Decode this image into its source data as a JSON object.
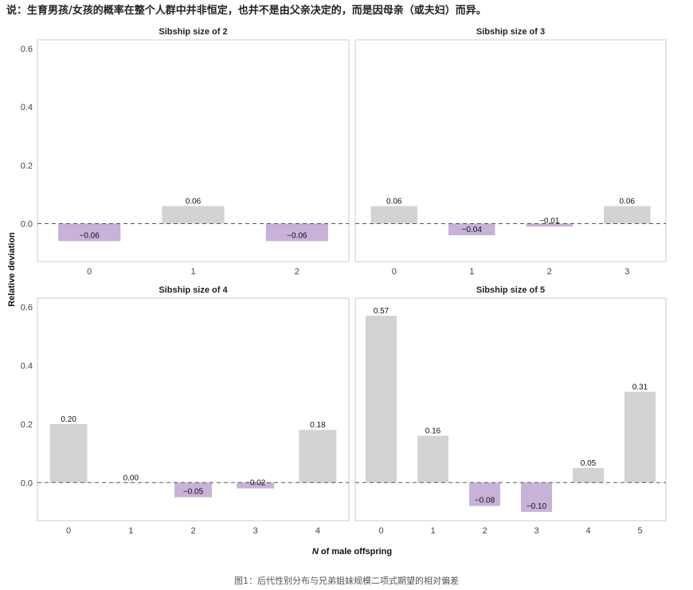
{
  "top_text": "说：生育男孩/女孩的概率在整个人群中并非恒定，也并不是由父亲决定的，而是因母亲（或夫妇）而异。",
  "caption": "图1：后代性别分布与兄弟姐妹规模二项式期望的相对偏差",
  "colors": {
    "positive": "#d3d3d3",
    "negative": "#c8b2d8",
    "panel_border": "#cccccc",
    "zero_line": "#555555"
  },
  "chart_data": {
    "type": "bar",
    "ylabel": "Relative deviation",
    "xlabel_italic": "N",
    "xlabel_rest": " of male offspring",
    "ylim": [
      -0.13,
      0.63
    ],
    "yticks": [
      "0.0",
      "0.2",
      "0.4",
      "0.6"
    ],
    "ytick_values": [
      0.0,
      0.2,
      0.4,
      0.6
    ],
    "zero_line": "dashed",
    "grid": false,
    "panels": [
      {
        "title": "Sibship size of 2",
        "categories": [
          "0",
          "1",
          "2"
        ],
        "values": [
          -0.06,
          0.06,
          -0.06
        ],
        "labels": [
          "−0.06",
          "0.06",
          "−0.06"
        ]
      },
      {
        "title": "Sibship size of 3",
        "categories": [
          "0",
          "1",
          "2",
          "3"
        ],
        "values": [
          0.06,
          -0.04,
          -0.01,
          0.06
        ],
        "labels": [
          "0.06",
          "−0.04",
          "−0.01",
          "0.06"
        ]
      },
      {
        "title": "Sibship size of 4",
        "categories": [
          "0",
          "1",
          "2",
          "3",
          "4"
        ],
        "values": [
          0.2,
          0.0,
          -0.05,
          -0.02,
          0.18
        ],
        "labels": [
          "0.20",
          "0.00",
          "−0.05",
          "−0.02",
          "0.18"
        ]
      },
      {
        "title": "Sibship size of 5",
        "categories": [
          "0",
          "1",
          "2",
          "3",
          "4",
          "5"
        ],
        "values": [
          0.57,
          0.16,
          -0.08,
          -0.1,
          0.05,
          0.31
        ],
        "labels": [
          "0.57",
          "0.16",
          "−0.08",
          "−0.10",
          "0.05",
          "0.31"
        ]
      }
    ]
  }
}
